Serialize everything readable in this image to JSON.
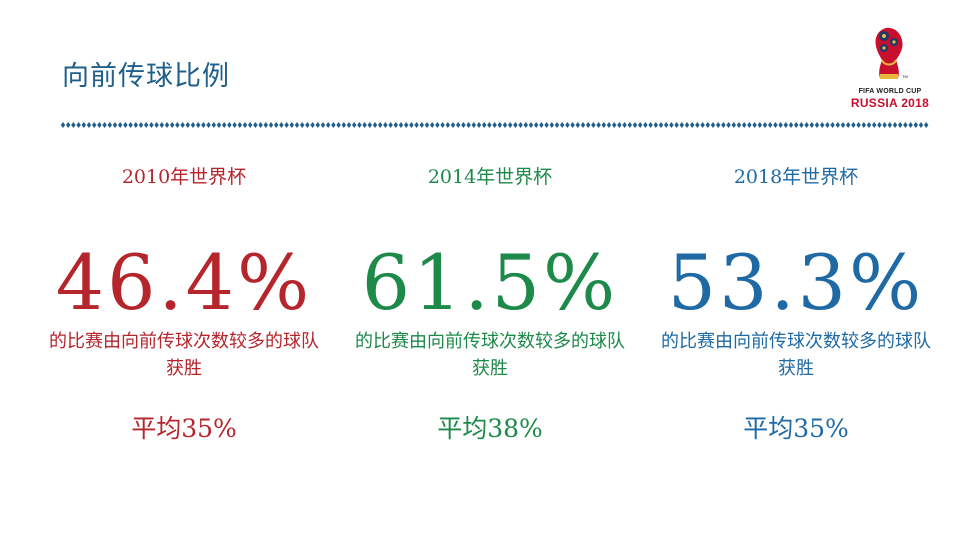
{
  "title": "向前传球比例",
  "logo": {
    "line1": "FIFA WORLD CUP",
    "line2": "RUSSIA 2018"
  },
  "columns": [
    {
      "year": "2010年世界杯",
      "percentage": "46.4%",
      "description": "的比赛由向前传球次数较多的球队获胜",
      "average": "平均35%",
      "color": "#b5262c"
    },
    {
      "year": "2014年世界杯",
      "percentage": "61.5%",
      "description": "的比赛由向前传球次数较多的球队获胜",
      "average": "平均38%",
      "color": "#1d8a4a"
    },
    {
      "year": "2018年世界杯",
      "percentage": "53.3%",
      "description": "的比赛由向前传球次数较多的球队获胜",
      "average": "平均35%",
      "color": "#1f6aa5"
    }
  ],
  "colors": {
    "title": "#1f5f8b",
    "divider": "#1f5f8b"
  }
}
